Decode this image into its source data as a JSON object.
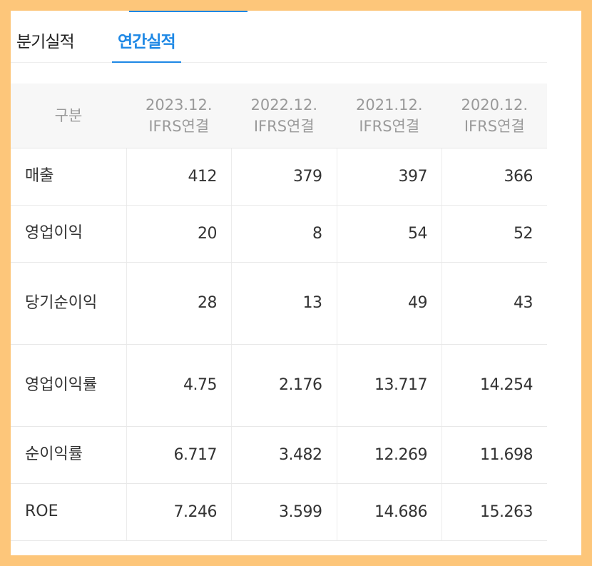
{
  "tabs": [
    {
      "label": "분기실적",
      "active": false
    },
    {
      "label": "연간실적",
      "active": true
    }
  ],
  "table": {
    "corner_label": "구분",
    "columns": [
      {
        "date": "2023.12.",
        "basis": "IFRS연결"
      },
      {
        "date": "2022.12.",
        "basis": "IFRS연결"
      },
      {
        "date": "2021.12.",
        "basis": "IFRS연결"
      },
      {
        "date": "2020.12.",
        "basis": "IFRS연결"
      }
    ],
    "rows": [
      {
        "label": "매출",
        "values": [
          "412",
          "379",
          "397",
          "366"
        ]
      },
      {
        "label": "영업이익",
        "values": [
          "20",
          "8",
          "54",
          "52"
        ]
      },
      {
        "label": "당기순이익",
        "values": [
          "28",
          "13",
          "49",
          "43"
        ]
      },
      {
        "label": "영업이익률",
        "values": [
          "4.75",
          "2.176",
          "13.717",
          "14.254"
        ]
      },
      {
        "label": "순이익률",
        "values": [
          "6.717",
          "3.482",
          "12.269",
          "11.698"
        ]
      },
      {
        "label": "ROE",
        "values": [
          "7.246",
          "3.599",
          "14.686",
          "15.263"
        ]
      }
    ]
  },
  "colors": {
    "accent": "#1e88e5",
    "frame": "#fdc67a",
    "header_bg": "#f7f7f7"
  }
}
